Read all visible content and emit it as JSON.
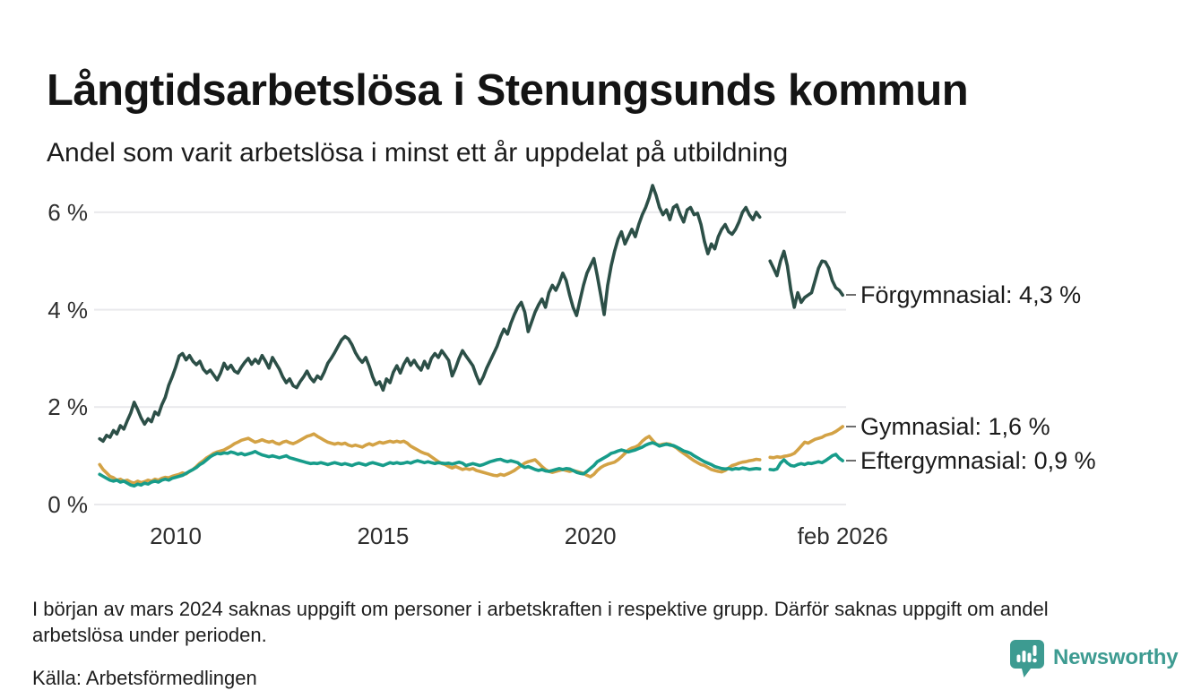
{
  "header": {
    "title": "Långtidsarbetslösa i Stenungsunds kommun",
    "subtitle": "Andel som varit arbetslösa i minst ett år uppdelat på utbildning"
  },
  "chart_data": {
    "type": "line",
    "title": "Långtidsarbetslösa i Stenungsunds kommun",
    "subtitle": "Andel som varit arbetslösa i minst ett år uppdelat på utbildning",
    "unit": "%",
    "grid": "horizontal",
    "legend_position": "right-end-labels",
    "x_axis": {
      "start": 2008.1667,
      "step_months": 1,
      "end": 2026.0833,
      "ticks": [
        {
          "t": 2010,
          "label": "2010"
        },
        {
          "t": 2015,
          "label": "2015"
        },
        {
          "t": 2020,
          "label": "2020"
        },
        {
          "t": 2026.0833,
          "label": "feb 2026"
        }
      ]
    },
    "y_axis": {
      "range": [
        0,
        6.8
      ],
      "ticks": [
        {
          "value": 6,
          "label": "6 %"
        },
        {
          "value": 4,
          "label": "4 %"
        },
        {
          "value": 2,
          "label": "2 %"
        },
        {
          "value": 0,
          "label": "0 %"
        }
      ]
    },
    "gridline_color": "#e9e9ec",
    "series": [
      {
        "name": "Förgymnasial",
        "color": "#2c4f47",
        "end_value": 4.3,
        "end_label": "Förgymnasial: 4,3 %",
        "values": [
          1.35,
          1.3,
          1.42,
          1.38,
          1.52,
          1.45,
          1.62,
          1.55,
          1.72,
          1.88,
          2.1,
          1.95,
          1.78,
          1.65,
          1.76,
          1.7,
          1.9,
          1.84,
          2.05,
          2.2,
          2.45,
          2.62,
          2.82,
          3.05,
          3.1,
          2.97,
          3.06,
          2.94,
          2.87,
          2.94,
          2.78,
          2.7,
          2.76,
          2.66,
          2.56,
          2.7,
          2.9,
          2.78,
          2.86,
          2.74,
          2.7,
          2.82,
          2.92,
          3.0,
          2.88,
          2.98,
          2.9,
          3.06,
          2.94,
          2.8,
          3.02,
          2.9,
          2.78,
          2.62,
          2.5,
          2.58,
          2.44,
          2.4,
          2.52,
          2.62,
          2.74,
          2.6,
          2.52,
          2.64,
          2.58,
          2.72,
          2.9,
          3.0,
          3.12,
          3.25,
          3.38,
          3.45,
          3.4,
          3.28,
          3.12,
          3.0,
          2.92,
          3.02,
          2.84,
          2.62,
          2.46,
          2.52,
          2.35,
          2.58,
          2.5,
          2.72,
          2.85,
          2.7,
          2.88,
          3.0,
          2.86,
          2.96,
          2.84,
          2.76,
          2.94,
          2.8,
          3.0,
          3.1,
          3.02,
          3.16,
          3.06,
          2.96,
          2.64,
          2.8,
          3.0,
          3.16,
          3.05,
          2.95,
          2.85,
          2.65,
          2.48,
          2.62,
          2.8,
          2.95,
          3.1,
          3.25,
          3.45,
          3.6,
          3.5,
          3.72,
          3.9,
          4.05,
          4.15,
          3.95,
          3.55,
          3.75,
          3.95,
          4.1,
          4.22,
          4.05,
          4.35,
          4.5,
          4.4,
          4.55,
          4.75,
          4.6,
          4.3,
          4.05,
          3.88,
          4.2,
          4.5,
          4.75,
          4.9,
          5.05,
          4.7,
          4.3,
          3.9,
          4.5,
          4.9,
          5.2,
          5.45,
          5.6,
          5.35,
          5.5,
          5.65,
          5.5,
          5.75,
          5.95,
          6.1,
          6.3,
          6.55,
          6.35,
          6.1,
          5.95,
          6.05,
          5.85,
          6.1,
          6.15,
          5.95,
          5.8,
          6.05,
          6.1,
          5.95,
          5.98,
          5.75,
          5.4,
          5.15,
          5.35,
          5.25,
          5.5,
          5.65,
          5.75,
          5.6,
          5.55,
          5.65,
          5.8,
          6.0,
          6.1,
          5.95,
          5.85,
          6.0,
          5.9,
          null,
          null,
          5.0,
          4.85,
          4.7,
          5.0,
          5.2,
          4.9,
          4.4,
          4.05,
          4.35,
          4.15,
          4.25,
          4.3,
          4.35,
          4.6,
          4.85,
          5.0,
          4.98,
          4.85,
          4.6,
          4.45,
          4.4,
          4.3
        ]
      },
      {
        "name": "Gymnasial",
        "color": "#d3a245",
        "end_value": 1.6,
        "end_label": "Gymnasial: 1,6 %",
        "values": [
          0.82,
          0.72,
          0.65,
          0.58,
          0.55,
          0.5,
          0.52,
          0.48,
          0.5,
          0.46,
          0.44,
          0.48,
          0.45,
          0.47,
          0.5,
          0.48,
          0.52,
          0.5,
          0.54,
          0.56,
          0.55,
          0.58,
          0.6,
          0.62,
          0.65,
          0.63,
          0.68,
          0.72,
          0.78,
          0.85,
          0.9,
          0.96,
          1.0,
          1.05,
          1.08,
          1.1,
          1.12,
          1.16,
          1.2,
          1.25,
          1.28,
          1.32,
          1.34,
          1.36,
          1.32,
          1.28,
          1.3,
          1.33,
          1.3,
          1.28,
          1.3,
          1.26,
          1.24,
          1.28,
          1.3,
          1.27,
          1.25,
          1.28,
          1.32,
          1.36,
          1.4,
          1.42,
          1.45,
          1.4,
          1.36,
          1.32,
          1.28,
          1.26,
          1.24,
          1.26,
          1.24,
          1.26,
          1.22,
          1.2,
          1.22,
          1.2,
          1.18,
          1.22,
          1.25,
          1.22,
          1.25,
          1.28,
          1.26,
          1.28,
          1.3,
          1.28,
          1.3,
          1.28,
          1.3,
          1.26,
          1.2,
          1.16,
          1.12,
          1.08,
          1.05,
          1.03,
          0.98,
          0.93,
          0.88,
          0.84,
          0.82,
          0.78,
          0.75,
          0.78,
          0.75,
          0.72,
          0.74,
          0.72,
          0.74,
          0.7,
          0.68,
          0.66,
          0.64,
          0.62,
          0.6,
          0.59,
          0.62,
          0.6,
          0.63,
          0.66,
          0.7,
          0.75,
          0.8,
          0.85,
          0.88,
          0.9,
          0.92,
          0.85,
          0.78,
          0.72,
          0.68,
          0.66,
          0.68,
          0.7,
          0.72,
          0.7,
          0.68,
          0.7,
          0.68,
          0.66,
          0.64,
          0.6,
          0.57,
          0.62,
          0.7,
          0.76,
          0.8,
          0.83,
          0.85,
          0.87,
          0.92,
          0.98,
          1.05,
          1.12,
          1.16,
          1.18,
          1.22,
          1.3,
          1.36,
          1.4,
          1.32,
          1.24,
          1.22,
          1.24,
          1.25,
          1.24,
          1.2,
          1.16,
          1.1,
          1.05,
          1.0,
          0.95,
          0.9,
          0.86,
          0.82,
          0.8,
          0.76,
          0.72,
          0.7,
          0.68,
          0.67,
          0.7,
          0.75,
          0.8,
          0.82,
          0.85,
          0.87,
          0.88,
          0.9,
          0.91,
          0.93,
          0.92,
          null,
          null,
          0.97,
          0.96,
          0.98,
          0.97,
          0.99,
          1.0,
          1.02,
          1.05,
          1.12,
          1.2,
          1.28,
          1.26,
          1.3,
          1.34,
          1.36,
          1.38,
          1.42,
          1.44,
          1.46,
          1.5,
          1.55,
          1.6
        ]
      },
      {
        "name": "Eftergymnasial",
        "color": "#179c8a",
        "end_value": 0.9,
        "end_label": "Eftergymnasial: 0,9 %",
        "values": [
          0.62,
          0.58,
          0.54,
          0.5,
          0.48,
          0.5,
          0.46,
          0.48,
          0.44,
          0.4,
          0.38,
          0.42,
          0.4,
          0.44,
          0.42,
          0.46,
          0.48,
          0.46,
          0.5,
          0.52,
          0.5,
          0.54,
          0.56,
          0.58,
          0.6,
          0.64,
          0.68,
          0.72,
          0.76,
          0.82,
          0.86,
          0.92,
          0.98,
          1.02,
          1.05,
          1.04,
          1.06,
          1.05,
          1.08,
          1.06,
          1.03,
          1.05,
          1.02,
          1.04,
          1.06,
          1.09,
          1.05,
          1.02,
          1.0,
          0.98,
          1.0,
          0.98,
          0.96,
          0.98,
          1.0,
          0.96,
          0.94,
          0.92,
          0.9,
          0.88,
          0.86,
          0.84,
          0.85,
          0.84,
          0.86,
          0.84,
          0.82,
          0.84,
          0.86,
          0.84,
          0.82,
          0.84,
          0.82,
          0.8,
          0.83,
          0.85,
          0.83,
          0.81,
          0.84,
          0.86,
          0.84,
          0.82,
          0.8,
          0.83,
          0.86,
          0.84,
          0.86,
          0.84,
          0.85,
          0.87,
          0.85,
          0.88,
          0.9,
          0.88,
          0.86,
          0.88,
          0.86,
          0.84,
          0.86,
          0.85,
          0.84,
          0.85,
          0.83,
          0.85,
          0.87,
          0.85,
          0.8,
          0.82,
          0.84,
          0.82,
          0.8,
          0.82,
          0.85,
          0.88,
          0.9,
          0.92,
          0.93,
          0.9,
          0.88,
          0.9,
          0.88,
          0.86,
          0.8,
          0.76,
          0.78,
          0.75,
          0.72,
          0.7,
          0.72,
          0.69,
          0.68,
          0.7,
          0.72,
          0.74,
          0.72,
          0.74,
          0.73,
          0.7,
          0.66,
          0.64,
          0.63,
          0.68,
          0.74,
          0.8,
          0.88,
          0.92,
          0.96,
          1.0,
          1.05,
          1.07,
          1.1,
          1.12,
          1.1,
          1.08,
          1.1,
          1.12,
          1.15,
          1.18,
          1.22,
          1.25,
          1.27,
          1.24,
          1.2,
          1.22,
          1.24,
          1.22,
          1.21,
          1.18,
          1.14,
          1.1,
          1.08,
          1.05,
          1.0,
          0.96,
          0.92,
          0.88,
          0.85,
          0.82,
          0.78,
          0.76,
          0.74,
          0.73,
          0.74,
          0.72,
          0.74,
          0.73,
          0.75,
          0.74,
          0.72,
          0.73,
          0.74,
          0.73,
          null,
          null,
          0.72,
          0.71,
          0.73,
          0.85,
          0.92,
          0.85,
          0.8,
          0.79,
          0.82,
          0.84,
          0.82,
          0.85,
          0.84,
          0.86,
          0.88,
          0.86,
          0.9,
          0.95,
          1.0,
          1.03,
          0.95,
          0.9
        ]
      }
    ]
  },
  "footer": {
    "note": "I början av mars 2024 saknas uppgift om personer i arbetskraften i respektive grupp. Därför saknas uppgift om andel arbetslösa under perioden.",
    "source": "Källa: Arbetsförmedlingen",
    "brand": "Newsworthy",
    "brand_color": "#3d9b91"
  }
}
